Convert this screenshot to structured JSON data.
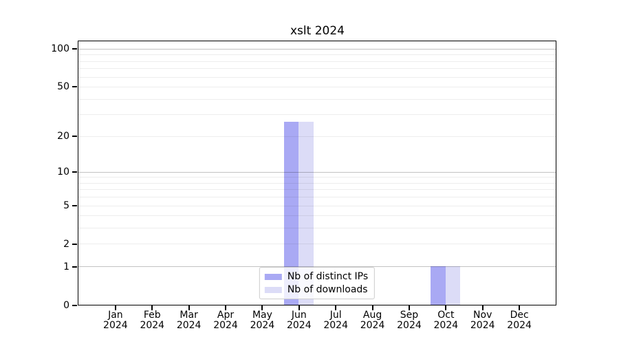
{
  "chart_data": {
    "type": "bar",
    "title": "xslt 2024",
    "categories": [
      "Jan 2024",
      "Feb 2024",
      "Mar 2024",
      "Apr 2024",
      "May 2024",
      "Jun 2024",
      "Jul 2024",
      "Aug 2024",
      "Sep 2024",
      "Oct 2024",
      "Nov 2024",
      "Dec 2024"
    ],
    "series": [
      {
        "name": "Nb of distinct IPs",
        "color": "#a9a9f4",
        "values": [
          0,
          0,
          0,
          0,
          0,
          26,
          0,
          0,
          0,
          1,
          0,
          0
        ]
      },
      {
        "name": "Nb of downloads",
        "color": "#dcdcf7",
        "values": [
          0,
          0,
          0,
          0,
          0,
          26,
          0,
          0,
          0,
          1,
          0,
          0
        ]
      }
    ],
    "yscale": "log1p",
    "ylim": [
      0,
      114.6
    ],
    "y_ticks": [
      0,
      1,
      2,
      5,
      10,
      20,
      50,
      100
    ],
    "y_major_grid": [
      1,
      10,
      100
    ],
    "y_minor_grid": [
      2,
      3,
      4,
      5,
      6,
      7,
      8,
      9,
      20,
      30,
      40,
      50,
      60,
      70,
      80,
      90
    ],
    "bar_width_frac": 0.4,
    "grid": true,
    "legend_position": "lower center",
    "style": {
      "spine_color": "#000000",
      "major_grid_color": "#c8c8c8",
      "minor_grid_color": "#ededed",
      "background": "#ffffff"
    }
  }
}
